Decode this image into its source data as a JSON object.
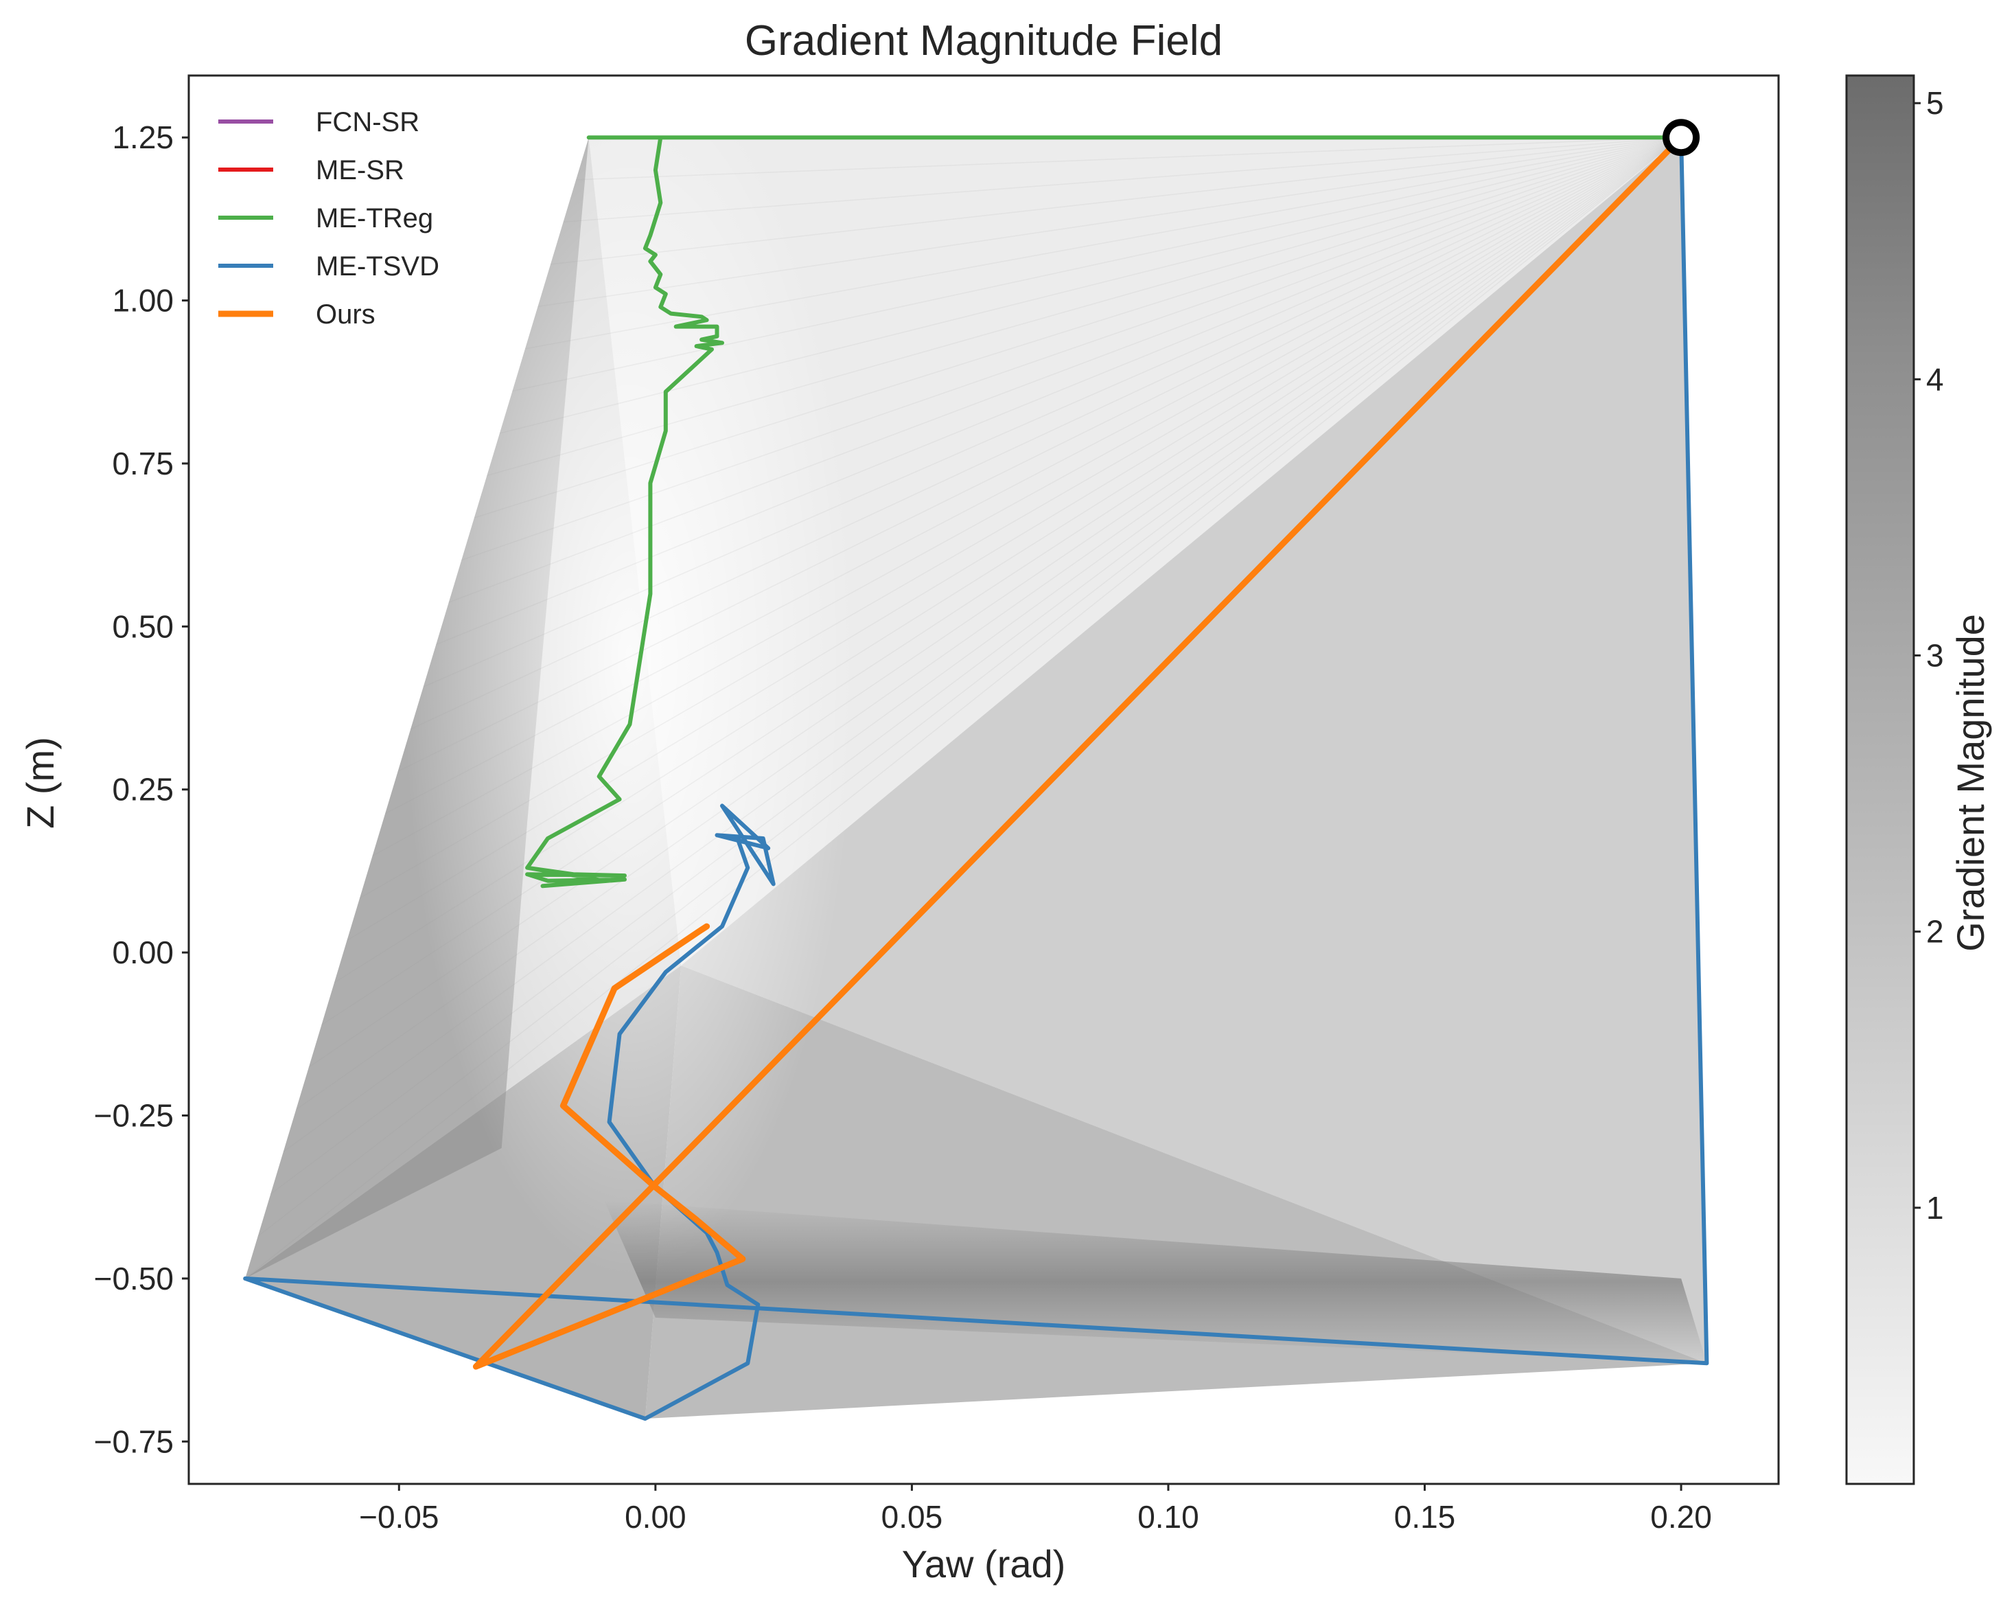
{
  "chart_data": {
    "type": "line",
    "title": "Gradient Magnitude Field",
    "xlabel": "Yaw (rad)",
    "ylabel": "Z (m)",
    "xlim": [
      -0.091,
      0.219
    ],
    "ylim": [
      -0.815,
      1.345
    ],
    "x_ticks": [
      -0.05,
      0.0,
      0.05,
      0.1,
      0.15,
      0.2
    ],
    "x_tick_labels": [
      "−0.05",
      "0.00",
      "0.05",
      "0.10",
      "0.15",
      "0.20"
    ],
    "y_ticks": [
      1.25,
      1.0,
      0.75,
      0.5,
      0.25,
      0.0,
      -0.25,
      -0.5,
      -0.75
    ],
    "y_tick_labels": [
      "1.25",
      "1.00",
      "0.75",
      "0.50",
      "0.25",
      "0.00",
      "−0.25",
      "−0.50",
      "−0.75"
    ],
    "grid": false,
    "legend_position": "top-left",
    "background_field": {
      "type": "heatmap",
      "colormap": "greys",
      "label": "Gradient Magnitude",
      "range": [
        0.0,
        5.1
      ],
      "ticks": [
        1,
        2,
        3,
        4,
        5
      ],
      "tick_labels": [
        "1",
        "2",
        "3",
        "4",
        "5"
      ]
    },
    "series": [
      {
        "name": "FCN-SR",
        "color": "#984ea3",
        "points": []
      },
      {
        "name": "ME-SR",
        "color": "#e41a1c",
        "points": []
      },
      {
        "name": "ME-TReg",
        "color": "#4daf4a",
        "points": [
          [
            0.2,
            1.25
          ],
          [
            -0.013,
            1.25
          ],
          [
            0.001,
            1.25
          ],
          [
            0.0,
            1.2
          ],
          [
            0.001,
            1.15
          ],
          [
            -0.001,
            1.1
          ],
          [
            -0.002,
            1.08
          ],
          [
            0.0,
            1.07
          ],
          [
            -0.001,
            1.06
          ],
          [
            0.001,
            1.04
          ],
          [
            0.0,
            1.02
          ],
          [
            0.002,
            1.01
          ],
          [
            0.001,
            0.99
          ],
          [
            0.003,
            0.98
          ],
          [
            0.009,
            0.975
          ],
          [
            0.01,
            0.97
          ],
          [
            0.004,
            0.96
          ],
          [
            0.012,
            0.96
          ],
          [
            0.012,
            0.945
          ],
          [
            0.009,
            0.94
          ],
          [
            0.013,
            0.935
          ],
          [
            0.008,
            0.93
          ],
          [
            0.011,
            0.925
          ],
          [
            0.002,
            0.86
          ],
          [
            0.002,
            0.8
          ],
          [
            -0.001,
            0.72
          ],
          [
            -0.001,
            0.55
          ],
          [
            -0.005,
            0.35
          ],
          [
            -0.011,
            0.27
          ],
          [
            -0.007,
            0.235
          ],
          [
            -0.021,
            0.175
          ],
          [
            -0.025,
            0.13
          ],
          [
            -0.016,
            0.12
          ],
          [
            -0.006,
            0.118
          ],
          [
            -0.025,
            0.12
          ],
          [
            -0.021,
            0.11
          ],
          [
            -0.006,
            0.112
          ],
          [
            -0.022,
            0.102
          ],
          [
            -0.01,
            0.11
          ],
          [
            -0.025,
            0.13
          ]
        ]
      },
      {
        "name": "ME-TSVD",
        "color": "#377eb8",
        "points": [
          [
            0.2,
            1.25
          ],
          [
            0.2,
            1.25
          ],
          [
            0.205,
            -0.63
          ],
          [
            -0.08,
            -0.5
          ],
          [
            -0.002,
            -0.715
          ],
          [
            0.018,
            -0.63
          ],
          [
            0.02,
            -0.54
          ],
          [
            0.014,
            -0.51
          ],
          [
            0.012,
            -0.46
          ],
          [
            0.01,
            -0.43
          ],
          [
            0.0,
            -0.36
          ],
          [
            -0.009,
            -0.26
          ],
          [
            -0.007,
            -0.125
          ],
          [
            0.002,
            -0.03
          ],
          [
            0.013,
            0.04
          ],
          [
            0.018,
            0.13
          ],
          [
            0.016,
            0.175
          ],
          [
            0.012,
            0.18
          ],
          [
            0.021,
            0.175
          ],
          [
            0.023,
            0.105
          ],
          [
            0.013,
            0.225
          ],
          [
            0.022,
            0.16
          ],
          [
            0.012,
            0.18
          ]
        ]
      },
      {
        "name": "Ours",
        "color": "#ff7f0e",
        "points": [
          [
            0.2,
            1.25
          ],
          [
            -0.035,
            -0.635
          ],
          [
            0.017,
            -0.47
          ],
          [
            0.008,
            -0.41
          ],
          [
            0.0,
            -0.36
          ],
          [
            -0.018,
            -0.235
          ],
          [
            -0.008,
            -0.055
          ],
          [
            0.009,
            0.035
          ],
          [
            0.01,
            0.04
          ]
        ]
      }
    ],
    "annotations": [
      {
        "type": "marker",
        "shape": "open-circle",
        "color": "#000000",
        "x": 0.2,
        "y": 1.25
      }
    ]
  }
}
